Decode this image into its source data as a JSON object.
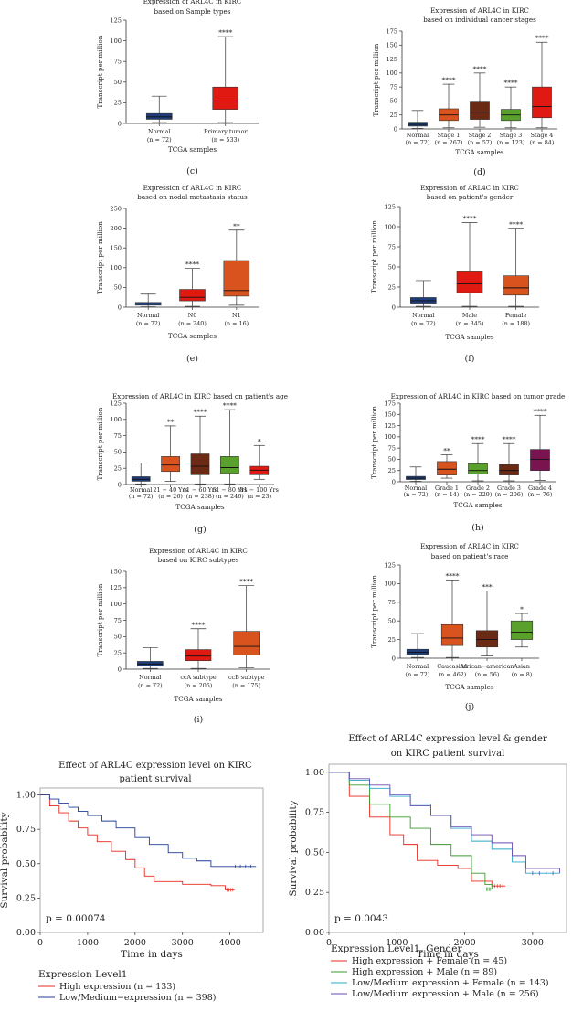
{
  "box_panels": [
    {
      "id": "c",
      "label": "(c)",
      "title": [
        "Expression of ARL4C in KIRC",
        "based on Sample types"
      ],
      "ylabel": "Transcript per million",
      "xlabel": "TCGA samples",
      "ymax": 125,
      "yticks": [
        0,
        25,
        50,
        75,
        100,
        125
      ],
      "groups": [
        {
          "name": "Normal",
          "n": "(n = 72)",
          "color": "#1f3d7a",
          "stats": [
            1,
            5,
            8,
            12,
            33
          ],
          "sig": ""
        },
        {
          "name": "Primary tumor",
          "n": "(n = 533)",
          "color": "#e01a12",
          "stats": [
            1,
            17,
            27,
            44,
            105
          ],
          "sig": "****"
        }
      ]
    },
    {
      "id": "d",
      "label": "(d)",
      "title": [
        "Expression of ARL4C in KIRC",
        "based on individual cancer stages"
      ],
      "ylabel": "Transcript per million",
      "xlabel": "TCGA samples",
      "ymax": 175,
      "yticks": [
        0,
        25,
        50,
        75,
        100,
        125,
        150,
        175
      ],
      "groups": [
        {
          "name": "Normal",
          "n": "(n = 72)",
          "color": "#1f3d7a",
          "stats": [
            1,
            5,
            8,
            12,
            33
          ],
          "sig": ""
        },
        {
          "name": "Stage 1",
          "n": "(n = 267)",
          "color": "#d9531e",
          "stats": [
            2,
            15,
            25,
            36,
            80
          ],
          "sig": "****"
        },
        {
          "name": "Stage 2",
          "n": "(n = 57)",
          "color": "#6b2a14",
          "stats": [
            3,
            17,
            30,
            48,
            100
          ],
          "sig": "****"
        },
        {
          "name": "Stage 3",
          "n": "(n = 123)",
          "color": "#5aa02c",
          "stats": [
            2,
            15,
            25,
            35,
            75
          ],
          "sig": "****"
        },
        {
          "name": "Stage 4",
          "n": "(n = 84)",
          "color": "#e01a12",
          "stats": [
            2,
            20,
            40,
            75,
            155
          ],
          "sig": "****"
        }
      ]
    },
    {
      "id": "e",
      "label": "(e)",
      "title": [
        "Expression of ARL4C in KIRC",
        "based on nodal metastasis status"
      ],
      "ylabel": "Transcript per million",
      "xlabel": "TCGA samples",
      "ymax": 250,
      "yticks": [
        0,
        50,
        100,
        150,
        200,
        250
      ],
      "groups": [
        {
          "name": "Normal",
          "n": "(n = 72)",
          "color": "#1f3d7a",
          "stats": [
            1,
            5,
            8,
            12,
            33
          ],
          "sig": ""
        },
        {
          "name": "N0",
          "n": "(n = 240)",
          "color": "#e01a12",
          "stats": [
            2,
            16,
            25,
            45,
            98
          ],
          "sig": "****"
        },
        {
          "name": "N1",
          "n": "(n = 16)",
          "color": "#d9531e",
          "stats": [
            5,
            28,
            42,
            118,
            195
          ],
          "sig": "**"
        }
      ]
    },
    {
      "id": "f",
      "label": "(f)",
      "title": [
        "Expression of ARL4C in KIRC",
        "based on patient's gender"
      ],
      "ylabel": "Transcript per million",
      "xlabel": "TCGA samples",
      "ymax": 125,
      "yticks": [
        0,
        25,
        50,
        75,
        100,
        125
      ],
      "groups": [
        {
          "name": "Normal",
          "n": "(n = 72)",
          "color": "#1f3d7a",
          "stats": [
            1,
            5,
            8,
            12,
            33
          ],
          "sig": ""
        },
        {
          "name": "Male",
          "n": "(n = 345)",
          "color": "#e01a12",
          "stats": [
            1,
            18,
            29,
            45,
            105
          ],
          "sig": "****"
        },
        {
          "name": "Female",
          "n": "(n = 188)",
          "color": "#d9531e",
          "stats": [
            1,
            15,
            24,
            39,
            98
          ],
          "sig": "****"
        }
      ]
    },
    {
      "id": "g",
      "label": "(g)",
      "title": [
        "Expression of ARL4C in KIRC based on patient's age"
      ],
      "ylabel": "Transcript per million",
      "xlabel": "TCGA samples",
      "ymax": 125,
      "yticks": [
        0,
        25,
        50,
        75,
        100,
        125
      ],
      "groups": [
        {
          "name": "Normal",
          "n": "(n = 72)",
          "color": "#1f3d7a",
          "stats": [
            1,
            5,
            8,
            12,
            33
          ],
          "sig": ""
        },
        {
          "name": "21 − 40 Yrs",
          "n": "(n = 26)",
          "color": "#d9531e",
          "stats": [
            5,
            20,
            30,
            43,
            90
          ],
          "sig": "**"
        },
        {
          "name": "41 − 60 Yrs",
          "n": "(n = 238)",
          "color": "#6b2a14",
          "stats": [
            1,
            15,
            28,
            47,
            105
          ],
          "sig": "****"
        },
        {
          "name": "61 − 80 Yrs",
          "n": "(n = 246)",
          "color": "#5aa02c",
          "stats": [
            1,
            17,
            26,
            43,
            115
          ],
          "sig": "****"
        },
        {
          "name": "81 − 100 Yrs",
          "n": "(n = 23)",
          "color": "#e01a12",
          "stats": [
            8,
            15,
            22,
            28,
            60
          ],
          "sig": "*"
        }
      ]
    },
    {
      "id": "h",
      "label": "(h)",
      "title": [
        "Expression of ARL4C in KIRC based on tumor grade"
      ],
      "ylabel": "Transcript per million",
      "xlabel": "TCGA samples",
      "ymax": 175,
      "yticks": [
        0,
        25,
        50,
        75,
        100,
        125,
        150,
        175
      ],
      "groups": [
        {
          "name": "Normal",
          "n": "(n = 72)",
          "color": "#1f3d7a",
          "stats": [
            1,
            5,
            8,
            12,
            33
          ],
          "sig": ""
        },
        {
          "name": "Grade 1",
          "n": "(n = 14)",
          "color": "#d9531e",
          "stats": [
            8,
            15,
            28,
            45,
            60
          ],
          "sig": "**"
        },
        {
          "name": "Grade 2",
          "n": "(n = 229)",
          "color": "#5aa02c",
          "stats": [
            2,
            17,
            25,
            40,
            85
          ],
          "sig": "****"
        },
        {
          "name": "Grade 3",
          "n": "(n = 206)",
          "color": "#6b2a14",
          "stats": [
            2,
            15,
            25,
            38,
            85
          ],
          "sig": "****"
        },
        {
          "name": "Grade 4",
          "n": "(n = 76)",
          "color": "#7a1450",
          "stats": [
            3,
            25,
            50,
            72,
            148
          ],
          "sig": "****"
        }
      ]
    },
    {
      "id": "i",
      "label": "(i)",
      "title": [
        "Expression of ARL4C in KIRC",
        "based on KIRC subtypes"
      ],
      "ylabel": "Transcript per million",
      "xlabel": "TCGA samples",
      "ymax": 150,
      "yticks": [
        0,
        25,
        50,
        75,
        100,
        125,
        150
      ],
      "groups": [
        {
          "name": "Normal",
          "n": "(n = 72)",
          "color": "#1f3d7a",
          "stats": [
            1,
            5,
            8,
            12,
            33
          ],
          "sig": ""
        },
        {
          "name": "ccA subtype",
          "n": "(n = 205)",
          "color": "#e01a12",
          "stats": [
            1,
            13,
            20,
            30,
            62
          ],
          "sig": "****"
        },
        {
          "name": "ccB subtype",
          "n": "(n = 175)",
          "color": "#d9531e",
          "stats": [
            2,
            22,
            35,
            58,
            128
          ],
          "sig": "****"
        }
      ]
    },
    {
      "id": "j",
      "label": "(j)",
      "title": [
        "Expression of ARL4C in KIRC",
        "based on patient's race"
      ],
      "ylabel": "Transcript per million",
      "xlabel": "TCGA samples",
      "ymax": 125,
      "yticks": [
        0,
        25,
        50,
        75,
        100,
        125
      ],
      "groups": [
        {
          "name": "Normal",
          "n": "(n = 72)",
          "color": "#1f3d7a",
          "stats": [
            1,
            5,
            8,
            12,
            33
          ],
          "sig": ""
        },
        {
          "name": "Caucasian",
          "n": "(n = 462)",
          "color": "#d9531e",
          "stats": [
            1,
            17,
            27,
            45,
            105
          ],
          "sig": "****"
        },
        {
          "name": "African−american",
          "n": "(n = 56)",
          "color": "#6b2a14",
          "stats": [
            3,
            15,
            25,
            37,
            90
          ],
          "sig": "***"
        },
        {
          "name": "Asian",
          "n": "(n = 8)",
          "color": "#5aa02c",
          "stats": [
            15,
            25,
            35,
            50,
            60
          ],
          "sig": "*"
        }
      ]
    }
  ],
  "km_left": {
    "title": [
      "Effect of ARL4C expression level on KIRC",
      "patient survival"
    ],
    "ylabel": "Survival probability",
    "xlabel": "Time in days",
    "pvalue": "p = 0.00074",
    "xmax": 4700,
    "yrange": [
      0,
      1.05
    ],
    "xticks": [
      0,
      1000,
      2000,
      3000,
      4000
    ],
    "yticks": [
      0.0,
      0.25,
      0.5,
      0.75,
      1.0
    ],
    "legend_title": "Expression Level1",
    "series": [
      {
        "name": "High expression (n = 133)",
        "color": "#e8281e",
        "points": [
          [
            0,
            1.0
          ],
          [
            200,
            0.92
          ],
          [
            400,
            0.87
          ],
          [
            600,
            0.81
          ],
          [
            800,
            0.76
          ],
          [
            1000,
            0.71
          ],
          [
            1200,
            0.66
          ],
          [
            1500,
            0.59
          ],
          [
            1800,
            0.53
          ],
          [
            2000,
            0.47
          ],
          [
            2200,
            0.41
          ],
          [
            2400,
            0.37
          ],
          [
            3000,
            0.35
          ],
          [
            3600,
            0.34
          ],
          [
            3900,
            0.31
          ],
          [
            4100,
            0.31
          ]
        ]
      },
      {
        "name": "Low/Medium−expression (n = 398)",
        "color": "#1f3d9a",
        "points": [
          [
            0,
            1.0
          ],
          [
            200,
            0.97
          ],
          [
            400,
            0.94
          ],
          [
            600,
            0.91
          ],
          [
            800,
            0.88
          ],
          [
            1000,
            0.85
          ],
          [
            1300,
            0.81
          ],
          [
            1600,
            0.76
          ],
          [
            2000,
            0.69
          ],
          [
            2300,
            0.64
          ],
          [
            2700,
            0.58
          ],
          [
            3000,
            0.54
          ],
          [
            3300,
            0.52
          ],
          [
            3600,
            0.48
          ],
          [
            4000,
            0.48
          ],
          [
            4550,
            0.48
          ]
        ]
      }
    ]
  },
  "km_right": {
    "title": [
      "Effect of ARL4C expression level & gender",
      "on KIRC patient survival"
    ],
    "ylabel": "Survival probability",
    "xlabel": "Time in days",
    "pvalue": "p = 0.0043",
    "xmax": 3500,
    "yrange": [
      0,
      1.05
    ],
    "xticks": [
      0,
      1000,
      2000,
      3000
    ],
    "yticks": [
      0.0,
      0.25,
      0.5,
      0.75,
      1.0
    ],
    "legend_title": "Expression Level1, Gender",
    "series": [
      {
        "name": "High expression + Female (n = 45)",
        "color": "#e8281e",
        "points": [
          [
            0,
            1.0
          ],
          [
            300,
            0.85
          ],
          [
            600,
            0.72
          ],
          [
            900,
            0.61
          ],
          [
            1100,
            0.55
          ],
          [
            1300,
            0.45
          ],
          [
            1600,
            0.42
          ],
          [
            1900,
            0.4
          ],
          [
            2100,
            0.32
          ],
          [
            2400,
            0.29
          ],
          [
            2600,
            0.29
          ]
        ]
      },
      {
        "name": "High expression + Male (n = 89)",
        "color": "#3a9a2c",
        "points": [
          [
            0,
            1.0
          ],
          [
            300,
            0.92
          ],
          [
            600,
            0.8
          ],
          [
            900,
            0.72
          ],
          [
            1200,
            0.65
          ],
          [
            1500,
            0.55
          ],
          [
            1800,
            0.48
          ],
          [
            2100,
            0.37
          ],
          [
            2300,
            0.3
          ],
          [
            2400,
            0.27
          ]
        ]
      },
      {
        "name": "Low/Medium expression + Female (n = 143)",
        "color": "#2aa8c8",
        "points": [
          [
            0,
            1.0
          ],
          [
            300,
            0.95
          ],
          [
            600,
            0.9
          ],
          [
            900,
            0.85
          ],
          [
            1200,
            0.8
          ],
          [
            1500,
            0.73
          ],
          [
            1800,
            0.65
          ],
          [
            2100,
            0.57
          ],
          [
            2400,
            0.52
          ],
          [
            2700,
            0.44
          ],
          [
            2900,
            0.37
          ],
          [
            3400,
            0.37
          ]
        ]
      },
      {
        "name": "Low/Medium expression + Male (n = 256)",
        "color": "#6a4bb0",
        "points": [
          [
            0,
            1.0
          ],
          [
            300,
            0.96
          ],
          [
            600,
            0.92
          ],
          [
            900,
            0.86
          ],
          [
            1200,
            0.79
          ],
          [
            1500,
            0.73
          ],
          [
            1800,
            0.66
          ],
          [
            2100,
            0.61
          ],
          [
            2400,
            0.56
          ],
          [
            2700,
            0.48
          ],
          [
            2900,
            0.4
          ],
          [
            3400,
            0.37
          ]
        ]
      }
    ]
  }
}
